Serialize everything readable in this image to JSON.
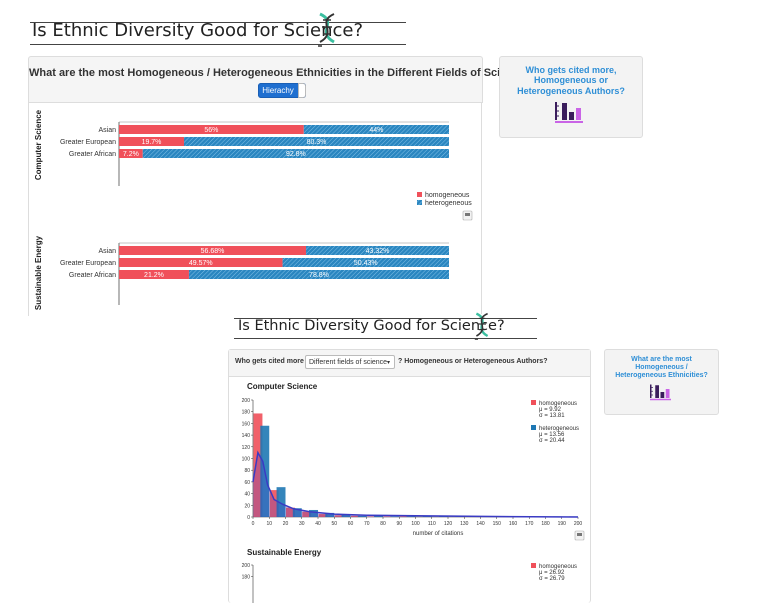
{
  "app_title": "Is Ethnic Diversity Good for Science?",
  "panel1": {
    "title": "What are the most Homogeneous / Heterogeneous Ethnicities in the Different Fields of Science?",
    "toggle_label": "Hierachy"
  },
  "nav_right_1": {
    "text": "Who gets cited more, Homogeneous or Heterogeneous Authors?"
  },
  "nav_right_2": {
    "text": "What are the most Homogeneous / Heterogeneous Ethnicities?"
  },
  "panel2": {
    "question_prefix": "Who gets cited more in",
    "select_value": "Different fields of science",
    "question_suffix": "? Homogeneous or Heterogeneous Authors?"
  },
  "colors": {
    "homogeneous": "#f0505a",
    "heterogeneous": "#1e78b4",
    "kde": "#3b3bc4",
    "accent": "#2f8fd6"
  },
  "chart_data": [
    {
      "type": "bar",
      "orientation": "horizontal",
      "stacked": true,
      "percent": true,
      "field": "Computer Science",
      "categories": [
        "Asian",
        "Greater European",
        "Greater African"
      ],
      "series": [
        {
          "name": "homogeneous",
          "values": [
            56,
            19.7,
            7.2
          ],
          "labels": [
            "56%",
            "19.7%",
            "7.2%"
          ]
        },
        {
          "name": "heterogeneous",
          "values": [
            44,
            80.3,
            92.8
          ],
          "labels": [
            "44%",
            "80.3%",
            "92.8%"
          ]
        }
      ],
      "legend": "bottom-right"
    },
    {
      "type": "bar",
      "orientation": "horizontal",
      "stacked": true,
      "percent": true,
      "field": "Sustainable Energy",
      "categories": [
        "Asian",
        "Greater European",
        "Greater African"
      ],
      "series": [
        {
          "name": "homogeneous",
          "values": [
            56.68,
            49.57,
            21.2
          ],
          "labels": [
            "56.68%",
            "49.57%",
            "21.2%"
          ]
        },
        {
          "name": "heterogeneous",
          "values": [
            43.32,
            50.43,
            78.8
          ],
          "labels": [
            "43.32%",
            "50.43%",
            "78.8%"
          ]
        }
      ]
    },
    {
      "type": "bar",
      "subtype": "histogram",
      "title": "Computer Science",
      "xlabel": "number of citations",
      "xlim": [
        0,
        200
      ],
      "ylim": [
        0,
        200
      ],
      "xticks": [
        0,
        10,
        20,
        30,
        40,
        50,
        60,
        70,
        80,
        90,
        100,
        110,
        120,
        130,
        140,
        150,
        160,
        170,
        180,
        190,
        200
      ],
      "yticks": [
        0,
        20,
        40,
        60,
        80,
        100,
        120,
        140,
        160,
        180,
        200
      ],
      "bin_starts": [
        0,
        10,
        20,
        30,
        40,
        50,
        60,
        70,
        80,
        90,
        100,
        110,
        120,
        130,
        140,
        150,
        160,
        170,
        180,
        190
      ],
      "series": [
        {
          "name": "homogeneous",
          "mean_label": "μ = 9.92",
          "sd_label": "σ = 13.81",
          "values": [
            177,
            46,
            16,
            9,
            5,
            3,
            2,
            1,
            1,
            1,
            0,
            0,
            0,
            0,
            0,
            0,
            0,
            0,
            0,
            0
          ]
        },
        {
          "name": "heterogeneous",
          "mean_label": "μ = 13.56",
          "sd_label": "σ = 20.44",
          "values": [
            156,
            51,
            15,
            12,
            7,
            4,
            2,
            2,
            1,
            1,
            1,
            1,
            1,
            1,
            0,
            0,
            1,
            1,
            1,
            1
          ]
        }
      ],
      "kde_values": [
        [
          0,
          60
        ],
        [
          3,
          110
        ],
        [
          6,
          95
        ],
        [
          9,
          55
        ],
        [
          13,
          30
        ],
        [
          18,
          22
        ],
        [
          25,
          14
        ],
        [
          35,
          9
        ],
        [
          50,
          5
        ],
        [
          70,
          3
        ],
        [
          100,
          2
        ],
        [
          140,
          1
        ],
        [
          200,
          0
        ]
      ],
      "legend": "right"
    },
    {
      "type": "bar",
      "subtype": "histogram",
      "title": "Sustainable Energy",
      "ylim": [
        0,
        200
      ],
      "yticks": [
        180,
        200
      ],
      "series": [
        {
          "name": "homogeneous",
          "mean_label": "μ = 26.92",
          "sd_label": "σ = 26.79"
        }
      ]
    }
  ]
}
